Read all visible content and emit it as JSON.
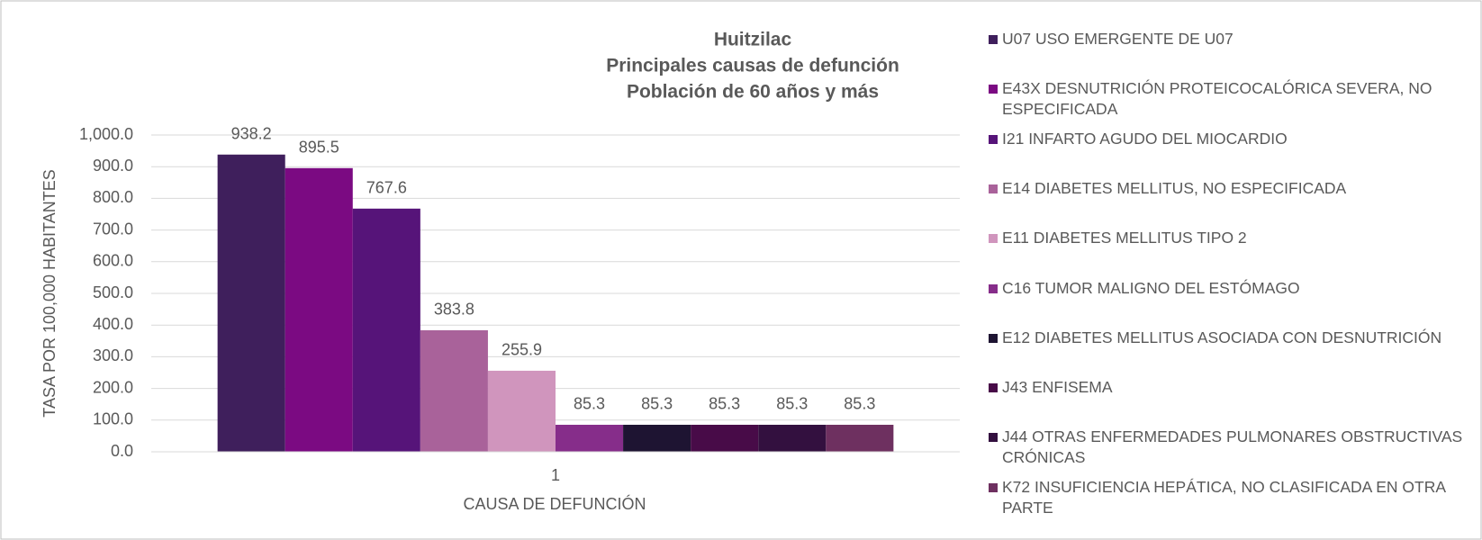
{
  "chart_data": {
    "type": "bar",
    "title": [
      "Huitzilac",
      "Principales causas de defunción",
      "Población de 60 años y más"
    ],
    "y_label": "TASA POR 100,000 HABITANTES",
    "x_label": "CAUSA DE DEFUNCIÓN",
    "categories": [
      "1"
    ],
    "series": [
      {
        "name": "U07 USO EMERGENTE DE U07",
        "color": "#3f1f5c",
        "values": [
          938.2
        ]
      },
      {
        "name": "E43X DESNUTRICIÓN PROTEICOCALÓRICA SEVERA, NO ESPECIFICADA",
        "color": "#7b0a82",
        "values": [
          895.5
        ]
      },
      {
        "name": "I21 INFARTO AGUDO DEL MIOCARDIO",
        "color": "#561479",
        "values": [
          767.6
        ]
      },
      {
        "name": "E14 DIABETES MELLITUS, NO ESPECIFICADA",
        "color": "#a9629a",
        "values": [
          383.8
        ]
      },
      {
        "name": "E11 DIABETES MELLITUS TIPO 2",
        "color": "#d095bd",
        "values": [
          255.9
        ]
      },
      {
        "name": "C16 TUMOR MALIGNO DEL ESTÓMAGO",
        "color": "#862d8a",
        "values": [
          85.3
        ]
      },
      {
        "name": "E12 DIABETES MELLITUS ASOCIADA CON DESNUTRICIÓN",
        "color": "#1e1432",
        "values": [
          85.3
        ]
      },
      {
        "name": "J43 ENFISEMA",
        "color": "#480b48",
        "values": [
          85.3
        ]
      },
      {
        "name": "J44 OTRAS ENFERMEDADES PULMONARES OBSTRUCTIVAS CRÓNICAS",
        "color": "#33103f",
        "values": [
          85.3
        ]
      },
      {
        "name": "K72 INSUFICIENCIA HEPÁTICA, NO CLASIFICADA EN OTRA PARTE",
        "color": "#6e3060",
        "values": [
          85.3
        ]
      }
    ],
    "ylim": [
      0,
      1000
    ],
    "yticks": [
      {
        "value": 0,
        "label": "0.0"
      },
      {
        "value": 100,
        "label": "100.0"
      },
      {
        "value": 200,
        "label": "200.0"
      },
      {
        "value": 300,
        "label": "300.0"
      },
      {
        "value": 400,
        "label": "400.0"
      },
      {
        "value": 500,
        "label": "500.0"
      },
      {
        "value": 600,
        "label": "600.0"
      },
      {
        "value": 700,
        "label": "700.0"
      },
      {
        "value": 800,
        "label": "800.0"
      },
      {
        "value": 900,
        "label": "900.0"
      },
      {
        "value": 1000,
        "label": "1,000.0"
      }
    ],
    "grid": true,
    "legend": "right"
  }
}
